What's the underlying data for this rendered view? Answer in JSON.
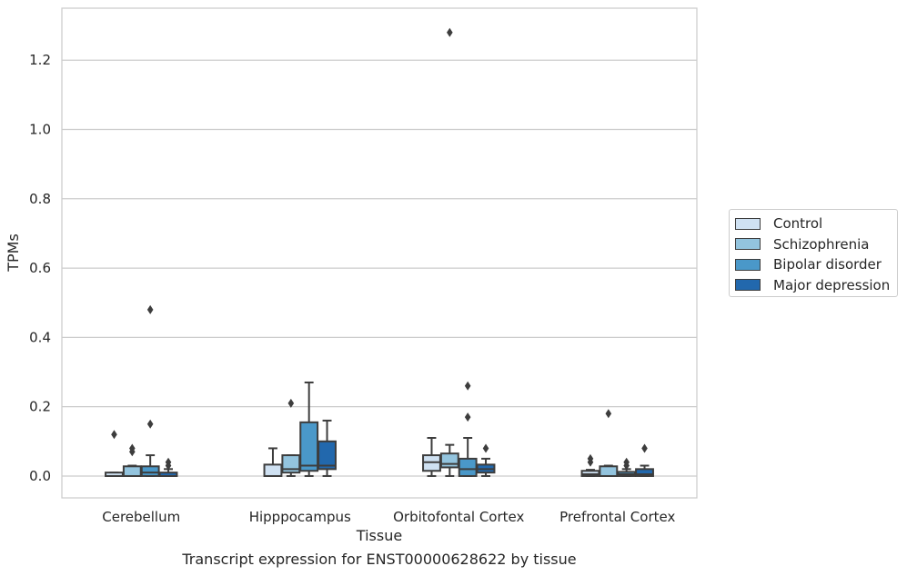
{
  "caption": "Transcript expression for ENST00000628622 by tissue",
  "chart_data": {
    "type": "box",
    "title": "",
    "xlabel": "Tissue",
    "ylabel": "TPMs",
    "categories": [
      "Cerebellum",
      "Hipppocampus",
      "Orbitofontal Cortex",
      "Prefrontal Cortex"
    ],
    "ylim": [
      -0.063,
      1.35
    ],
    "yticks": [
      0.0,
      0.2,
      0.4,
      0.6,
      0.8,
      1.0,
      1.2
    ],
    "ytick_labels": [
      "0.0",
      "0.2",
      "0.4",
      "0.6",
      "0.8",
      "1.0",
      "1.2"
    ],
    "grid": "horizontal",
    "legend_position": "right",
    "series": [
      {
        "name": "Control",
        "color": "#cfe1f2",
        "boxes": [
          {
            "whislo": 0.0,
            "q1": 0.0,
            "med": 0.0,
            "q3": 0.01,
            "whishi": 0.01,
            "fliers": [
              0.12
            ]
          },
          {
            "whislo": 0.0,
            "q1": 0.0,
            "med": 0.0,
            "q3": 0.033,
            "whishi": 0.08,
            "fliers": []
          },
          {
            "whislo": 0.0,
            "q1": 0.015,
            "med": 0.04,
            "q3": 0.06,
            "whishi": 0.11,
            "fliers": []
          },
          {
            "whislo": 0.0,
            "q1": 0.0,
            "med": 0.005,
            "q3": 0.015,
            "whishi": 0.018,
            "fliers": [
              0.04,
              0.05
            ]
          }
        ]
      },
      {
        "name": "Schizophrenia",
        "color": "#93c4de",
        "boxes": [
          {
            "whislo": 0.0,
            "q1": 0.0,
            "med": 0.0,
            "q3": 0.028,
            "whishi": 0.03,
            "fliers": [
              0.07,
              0.08
            ]
          },
          {
            "whislo": 0.0,
            "q1": 0.01,
            "med": 0.02,
            "q3": 0.06,
            "whishi": 0.06,
            "fliers": [
              0.21
            ]
          },
          {
            "whislo": 0.0,
            "q1": 0.025,
            "med": 0.035,
            "q3": 0.065,
            "whishi": 0.09,
            "fliers": [
              1.28
            ]
          },
          {
            "whislo": 0.0,
            "q1": 0.0,
            "med": 0.0,
            "q3": 0.028,
            "whishi": 0.03,
            "fliers": [
              0.18
            ]
          }
        ]
      },
      {
        "name": "Bipolar disorder",
        "color": "#4a98c9",
        "boxes": [
          {
            "whislo": 0.0,
            "q1": 0.0,
            "med": 0.01,
            "q3": 0.028,
            "whishi": 0.06,
            "fliers": [
              0.15,
              0.48
            ]
          },
          {
            "whislo": 0.0,
            "q1": 0.015,
            "med": 0.03,
            "q3": 0.155,
            "whishi": 0.27,
            "fliers": []
          },
          {
            "whislo": 0.0,
            "q1": 0.0,
            "med": 0.02,
            "q3": 0.05,
            "whishi": 0.11,
            "fliers": [
              0.17,
              0.26
            ]
          },
          {
            "whislo": 0.0,
            "q1": 0.0,
            "med": 0.005,
            "q3": 0.012,
            "whishi": 0.02,
            "fliers": [
              0.03,
              0.04
            ]
          }
        ]
      },
      {
        "name": "Major depression",
        "color": "#2268ad",
        "boxes": [
          {
            "whislo": 0.0,
            "q1": 0.0,
            "med": 0.0,
            "q3": 0.01,
            "whishi": 0.02,
            "fliers": [
              0.03,
              0.04
            ]
          },
          {
            "whislo": 0.0,
            "q1": 0.02,
            "med": 0.03,
            "q3": 0.1,
            "whishi": 0.16,
            "fliers": []
          },
          {
            "whislo": 0.0,
            "q1": 0.01,
            "med": 0.02,
            "q3": 0.033,
            "whishi": 0.05,
            "fliers": [
              0.08
            ]
          },
          {
            "whislo": 0.0,
            "q1": 0.0,
            "med": 0.005,
            "q3": 0.02,
            "whishi": 0.03,
            "fliers": [
              0.08
            ]
          }
        ]
      }
    ]
  }
}
